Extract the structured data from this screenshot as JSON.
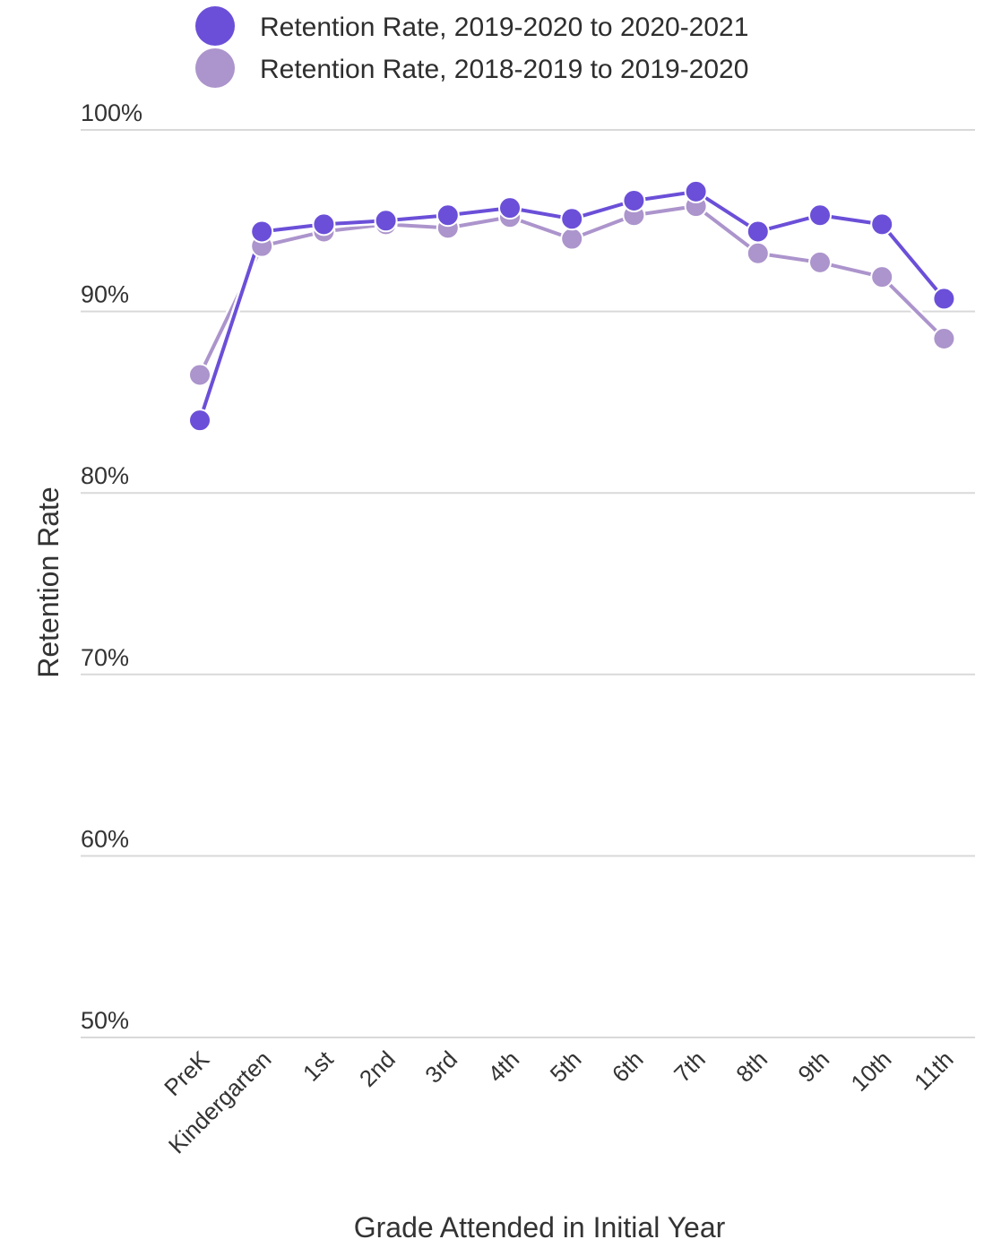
{
  "chart_data": {
    "type": "line",
    "xlabel": "Grade Attended in Initial Year",
    "ylabel": "Retention Rate",
    "ylim": [
      50,
      100
    ],
    "yticks": [
      50,
      60,
      70,
      80,
      90,
      100
    ],
    "ytick_labels": [
      "50%",
      "60%",
      "70%",
      "80%",
      "90%",
      "100%"
    ],
    "categories": [
      "PreK",
      "Kindergarten",
      "1st",
      "2nd",
      "3rd",
      "4th",
      "5th",
      "6th",
      "7th",
      "8th",
      "9th",
      "10th",
      "11th"
    ],
    "grid": true,
    "legend_position": "top",
    "series": [
      {
        "name": "Retention Rate, 2019-2020 to 2020-2021",
        "color": "#6b4fd8",
        "values": [
          84.0,
          94.4,
          94.8,
          95.0,
          95.3,
          95.7,
          95.1,
          96.1,
          96.6,
          94.4,
          95.3,
          94.8,
          90.7
        ]
      },
      {
        "name": "Retention Rate, 2018-2019 to 2019-2020",
        "color": "#ac94cc",
        "values": [
          86.5,
          93.6,
          94.4,
          94.8,
          94.6,
          95.2,
          94.0,
          95.3,
          95.8,
          93.2,
          92.7,
          91.9,
          88.5
        ]
      }
    ]
  }
}
